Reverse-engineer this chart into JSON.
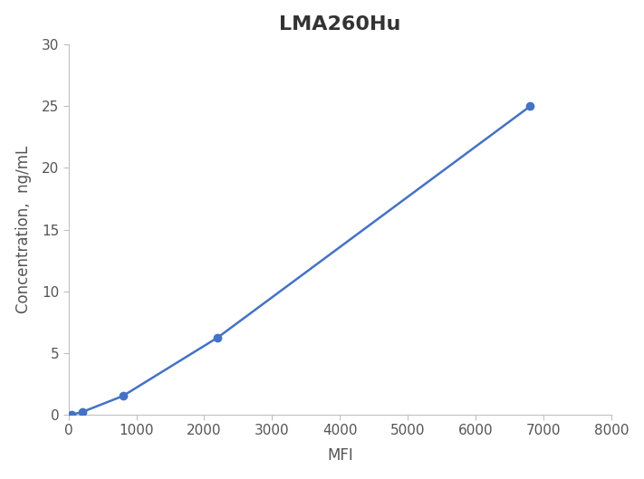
{
  "title": "LMA260Hu",
  "xlabel": "MFI",
  "ylabel": "Concentration,  ng/mL",
  "x_data": [
    50,
    200,
    800,
    2200,
    6800
  ],
  "y_data": [
    0.0,
    0.2,
    1.5,
    6.25,
    25.0
  ],
  "line_color": "#4472C4",
  "marker_color": "#4472C4",
  "marker_size": 6,
  "xlim": [
    0,
    8000
  ],
  "ylim": [
    0,
    30
  ],
  "xticks": [
    0,
    1000,
    2000,
    3000,
    4000,
    5000,
    6000,
    7000,
    8000
  ],
  "yticks": [
    0,
    5,
    10,
    15,
    20,
    25,
    30
  ],
  "title_fontsize": 16,
  "title_fontweight": "bold",
  "title_color": "#333333",
  "label_fontsize": 12,
  "tick_fontsize": 11,
  "tick_color": "#555555",
  "figure_background": "#ffffff",
  "axes_background": "#ffffff",
  "spine_color": "#c0c0c0",
  "grid": false
}
